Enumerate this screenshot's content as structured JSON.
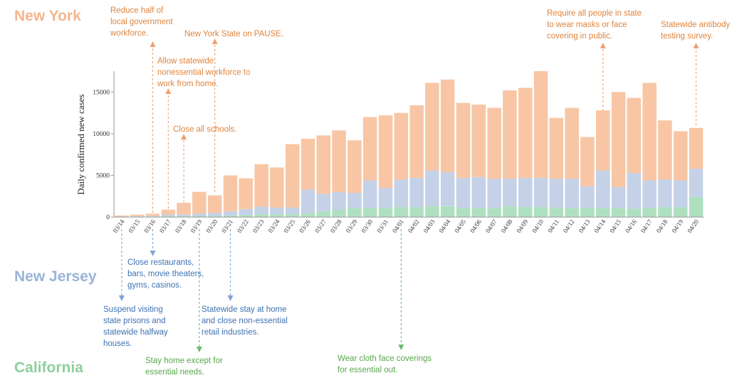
{
  "chart_data": {
    "type": "bar",
    "stacked": true,
    "ylabel": "Daily confirmed new cases",
    "xlabel": "",
    "ylim": [
      0,
      17500
    ],
    "yticks": [
      0,
      5000,
      10000,
      15000
    ],
    "categories": [
      "03/14",
      "03/15",
      "03/16",
      "03/17",
      "03/18",
      "03/19",
      "03/20",
      "03/21",
      "03/22",
      "03/23",
      "03/24",
      "03/25",
      "03/26",
      "03/27",
      "03/28",
      "03/29",
      "03/30",
      "03/31",
      "04/01",
      "04/02",
      "04/03",
      "04/04",
      "04/05",
      "04/06",
      "04/07",
      "04/08",
      "04/09",
      "04/10",
      "04/11",
      "04/12",
      "04/13",
      "04/14",
      "04/15",
      "04/16",
      "04/17",
      "04/18",
      "04/19",
      "04/20"
    ],
    "series": [
      {
        "name": "California",
        "color": "#aee0bf",
        "values": [
          50,
          60,
          80,
          100,
          120,
          130,
          160,
          200,
          250,
          350,
          350,
          350,
          500,
          700,
          900,
          1100,
          1100,
          1100,
          1200,
          1200,
          1300,
          1300,
          1100,
          1100,
          1100,
          1300,
          1200,
          1200,
          1100,
          1100,
          1100,
          1100,
          1100,
          1000,
          1100,
          1200,
          1200,
          2400
        ]
      },
      {
        "name": "New Jersey",
        "color": "#c4d1e7",
        "values": [
          30,
          40,
          60,
          200,
          200,
          300,
          350,
          500,
          700,
          900,
          800,
          800,
          2800,
          2100,
          2100,
          1800,
          3300,
          2400,
          3300,
          3500,
          4300,
          4100,
          3600,
          3700,
          3500,
          3300,
          3500,
          3500,
          3500,
          3500,
          2600,
          4500,
          2500,
          4300,
          3300,
          3300,
          3200,
          3400
        ]
      },
      {
        "name": "New York",
        "color": "#f8c6a4",
        "values": [
          120,
          200,
          260,
          600,
          1400,
          2600,
          2100,
          4300,
          3700,
          5100,
          4800,
          7600,
          6100,
          7000,
          7400,
          6300,
          7600,
          8700,
          8000,
          8700,
          10500,
          11100,
          9000,
          8700,
          8500,
          10600,
          10800,
          12800,
          7300,
          8500,
          5900,
          7200,
          11400,
          9000,
          11700,
          7100,
          5900,
          4900
        ]
      }
    ]
  },
  "states": {
    "new_york": "New York",
    "new_jersey": "New Jersey",
    "california": "California"
  },
  "colors": {
    "ny_text": "#e0843c",
    "nj_text": "#3e72b3",
    "ca_text": "#58a64c"
  },
  "annotations": {
    "ny_workforce": "Reduce half of\nlocal government\nworkforce.",
    "ny_pause": "New York State on PAUSE.",
    "ny_home": "Allow statewide\nnonessential workforce to\nwork from home.",
    "ny_schools": "Close all schools.",
    "ny_masks": "Require all people in state\nto wear masks or face\ncovering in public.",
    "ny_antibody": "Statewide antibody\ntesting survey.",
    "nj_restaurants": "Close restaurants,\nbars, movie theaters,\ngyms, casinos.",
    "nj_prisons": "Suspend visiting\nstate prisons and\nstatewide halfway\nhouses.",
    "nj_stay_home": "Statewide stay at home\nand close non-essential\nretail industries.",
    "ca_stay_home": "Stay home except for\nessential needs.",
    "ca_face": "Wear cloth face coverings\nfor essential out."
  }
}
